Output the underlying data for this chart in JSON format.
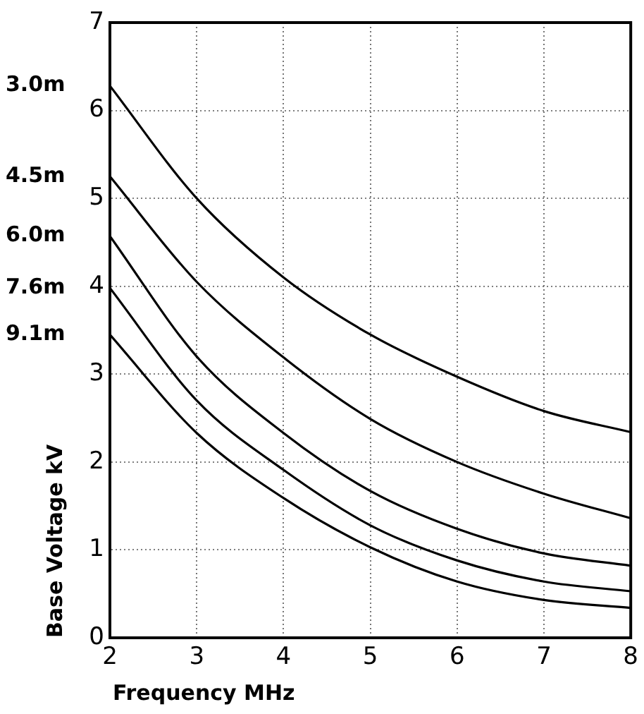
{
  "chart_data": {
    "type": "line",
    "xlabel": "Frequency MHz",
    "ylabel": "Base Voltage kV",
    "x": [
      2,
      3,
      4,
      5,
      6,
      7,
      8
    ],
    "series": [
      {
        "name": "3.0m",
        "color": "#000000",
        "values": [
          6.28,
          5.0,
          4.1,
          3.45,
          2.97,
          2.58,
          2.34
        ]
      },
      {
        "name": "4.5m",
        "color": "#000000",
        "values": [
          5.25,
          4.05,
          3.19,
          2.49,
          2.0,
          1.64,
          1.36
        ]
      },
      {
        "name": "6.0m",
        "color": "#000000",
        "values": [
          4.57,
          3.2,
          2.33,
          1.67,
          1.24,
          0.96,
          0.82
        ]
      },
      {
        "name": "7.6m",
        "color": "#000000",
        "values": [
          3.98,
          2.7,
          1.91,
          1.28,
          0.88,
          0.64,
          0.53
        ]
      },
      {
        "name": "9.1m",
        "color": "#000000",
        "values": [
          3.45,
          2.33,
          1.59,
          1.03,
          0.64,
          0.43,
          0.34
        ]
      }
    ],
    "xlim": [
      2,
      8
    ],
    "xticks": [
      2,
      3,
      4,
      5,
      6,
      7,
      8
    ],
    "ylim": [
      0,
      7
    ],
    "yticks": [
      0,
      1,
      2,
      3,
      4,
      5,
      6,
      7
    ],
    "grid": true,
    "legend": false,
    "marker": "none",
    "line_style": "solid"
  }
}
